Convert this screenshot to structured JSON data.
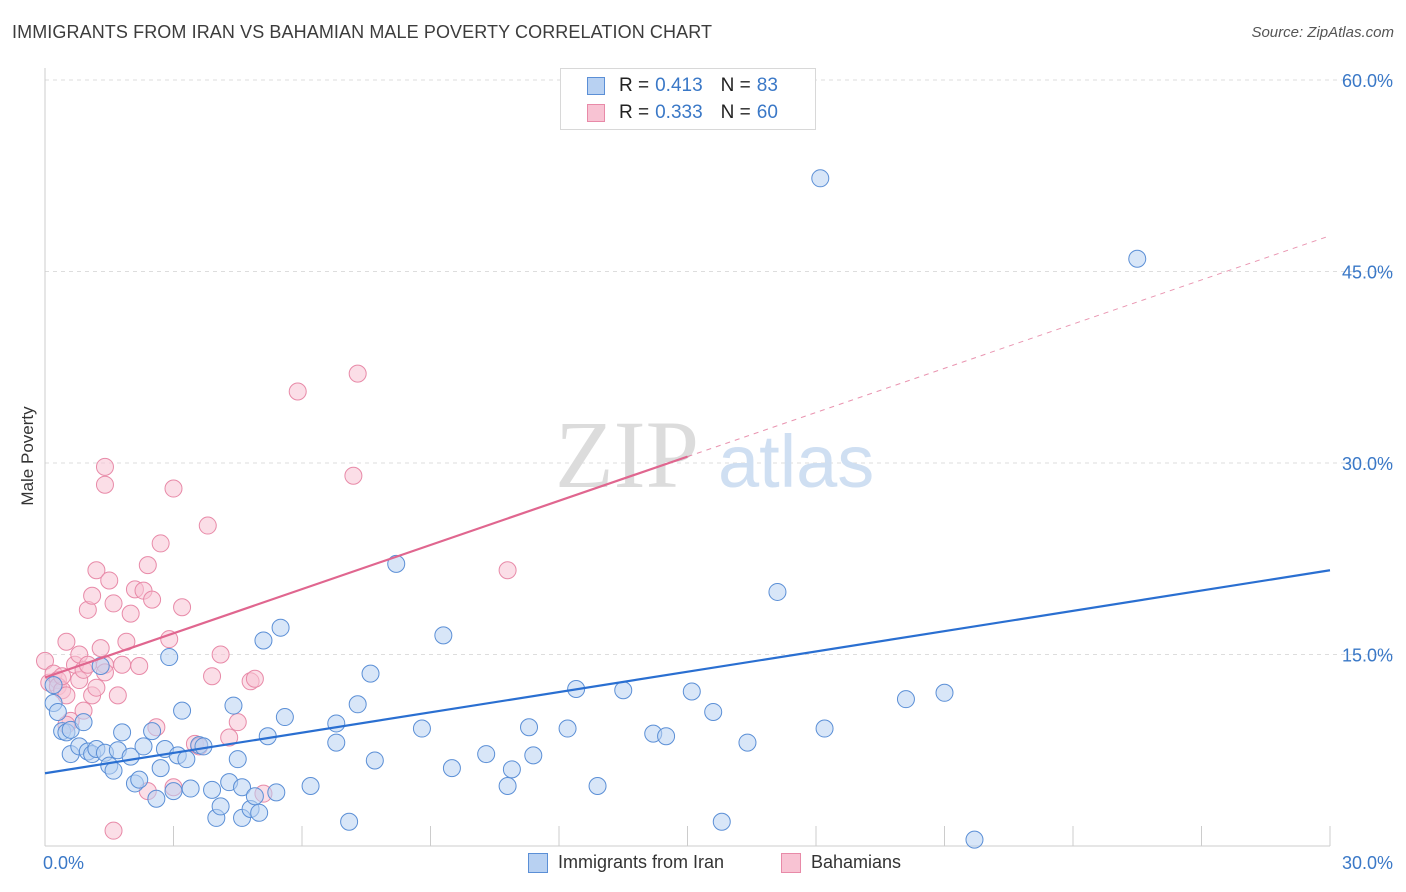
{
  "header": {
    "title": "IMMIGRANTS FROM IRAN VS BAHAMIAN MALE POVERTY CORRELATION CHART",
    "source": "Source: ZipAtlas.com"
  },
  "watermark": {
    "zip": "ZIP",
    "atlas": "atlas"
  },
  "stats": {
    "blue": {
      "r_label": "R =",
      "r_value": "0.413",
      "n_label": "N =",
      "n_value": "83"
    },
    "pink": {
      "r_label": "R =",
      "r_value": "0.333",
      "n_label": "N =",
      "n_value": "60"
    }
  },
  "legend": {
    "blue": "Immigrants from Iran",
    "pink": "Bahamians"
  },
  "colors": {
    "blue_fill": "#b8d1f2",
    "blue_stroke": "#5b8fd6",
    "blue_line": "#2a6fd1",
    "pink_fill": "#f8c3d3",
    "pink_stroke": "#e88aa8",
    "pink_line": "#e0668f",
    "grid": "#dddddd",
    "tick_label": "#3a78c7"
  },
  "chart_data": {
    "type": "scatter",
    "title": "IMMIGRANTS FROM IRAN VS BAHAMIAN MALE POVERTY CORRELATION CHART",
    "xlabel": "",
    "ylabel": "Male Poverty",
    "xlim": [
      0,
      30
    ],
    "ylim": [
      0,
      60
    ],
    "x_tick_labels": [
      "0.0%",
      "30.0%"
    ],
    "y_ticks": [
      15,
      30,
      45,
      60
    ],
    "y_tick_labels": [
      "15.0%",
      "30.0%",
      "45.0%",
      "60.0%"
    ],
    "grid": true,
    "legend_position": "bottom",
    "series": [
      {
        "name": "Immigrants from Iran",
        "r": 0.413,
        "n": 83,
        "trend": {
          "x": [
            0,
            30
          ],
          "y": [
            5.7,
            21.6
          ],
          "dashed_extension": false
        },
        "points": [
          [
            0.2,
            11.2
          ],
          [
            0.2,
            12.6
          ],
          [
            0.3,
            10.5
          ],
          [
            0.4,
            9.0
          ],
          [
            0.5,
            8.9
          ],
          [
            0.6,
            7.2
          ],
          [
            0.6,
            9.1
          ],
          [
            0.8,
            7.8
          ],
          [
            0.9,
            9.7
          ],
          [
            1.0,
            7.4
          ],
          [
            1.1,
            7.2
          ],
          [
            1.2,
            7.6
          ],
          [
            1.3,
            14.1
          ],
          [
            1.4,
            7.3
          ],
          [
            1.5,
            6.3
          ],
          [
            1.6,
            5.9
          ],
          [
            1.7,
            7.5
          ],
          [
            1.8,
            8.9
          ],
          [
            2.0,
            7.0
          ],
          [
            2.1,
            4.9
          ],
          [
            2.2,
            5.2
          ],
          [
            2.3,
            7.8
          ],
          [
            2.5,
            9.0
          ],
          [
            2.6,
            3.7
          ],
          [
            2.7,
            6.1
          ],
          [
            2.8,
            7.6
          ],
          [
            2.9,
            14.8
          ],
          [
            3.0,
            4.3
          ],
          [
            3.1,
            7.1
          ],
          [
            3.2,
            10.6
          ],
          [
            3.3,
            6.8
          ],
          [
            3.4,
            4.5
          ],
          [
            3.6,
            7.9
          ],
          [
            3.7,
            7.8
          ],
          [
            3.9,
            4.4
          ],
          [
            4.0,
            2.2
          ],
          [
            4.1,
            3.1
          ],
          [
            4.3,
            5.0
          ],
          [
            4.4,
            11.0
          ],
          [
            4.5,
            6.8
          ],
          [
            4.6,
            4.6
          ],
          [
            4.6,
            2.2
          ],
          [
            4.8,
            2.9
          ],
          [
            4.9,
            3.9
          ],
          [
            5.0,
            2.6
          ],
          [
            5.1,
            16.1
          ],
          [
            5.2,
            8.6
          ],
          [
            5.4,
            4.2
          ],
          [
            5.5,
            17.1
          ],
          [
            5.6,
            10.1
          ],
          [
            6.2,
            4.7
          ],
          [
            6.8,
            8.1
          ],
          [
            6.8,
            9.6
          ],
          [
            7.1,
            1.9
          ],
          [
            7.3,
            11.1
          ],
          [
            7.6,
            13.5
          ],
          [
            7.7,
            6.7
          ],
          [
            8.2,
            22.1
          ],
          [
            8.8,
            9.2
          ],
          [
            9.5,
            6.1
          ],
          [
            9.3,
            16.5
          ],
          [
            10.3,
            7.2
          ],
          [
            10.8,
            4.7
          ],
          [
            10.9,
            6.0
          ],
          [
            11.3,
            9.3
          ],
          [
            11.4,
            7.1
          ],
          [
            12.2,
            9.2
          ],
          [
            12.4,
            12.3
          ],
          [
            12.9,
            4.7
          ],
          [
            13.5,
            12.2
          ],
          [
            14.2,
            8.8
          ],
          [
            14.5,
            8.6
          ],
          [
            15.1,
            12.1
          ],
          [
            15.6,
            10.5
          ],
          [
            15.8,
            1.9
          ],
          [
            16.4,
            8.1
          ],
          [
            17.1,
            19.9
          ],
          [
            18.1,
            52.3
          ],
          [
            18.2,
            9.2
          ],
          [
            20.1,
            11.5
          ],
          [
            21.0,
            12.0
          ],
          [
            21.7,
            0.5
          ],
          [
            25.5,
            46.0
          ]
        ]
      },
      {
        "name": "Bahamians",
        "r": 0.333,
        "n": 60,
        "trend": {
          "x": [
            0,
            15
          ],
          "y": [
            13.2,
            30.5
          ],
          "dashed_extension_to": [
            30,
            47.8
          ]
        },
        "points": [
          [
            0.0,
            14.5
          ],
          [
            0.1,
            12.8
          ],
          [
            0.2,
            13.5
          ],
          [
            0.3,
            13.0
          ],
          [
            0.3,
            12.5
          ],
          [
            0.4,
            12.2
          ],
          [
            0.4,
            13.3
          ],
          [
            0.5,
            16.0
          ],
          [
            0.5,
            11.8
          ],
          [
            0.6,
            9.8
          ],
          [
            0.7,
            14.2
          ],
          [
            0.8,
            15.0
          ],
          [
            0.8,
            13.0
          ],
          [
            0.9,
            13.8
          ],
          [
            0.9,
            10.6
          ],
          [
            1.0,
            14.2
          ],
          [
            1.0,
            18.5
          ],
          [
            1.1,
            11.8
          ],
          [
            1.1,
            19.6
          ],
          [
            1.2,
            21.6
          ],
          [
            1.2,
            12.4
          ],
          [
            1.3,
            15.5
          ],
          [
            1.4,
            14.2
          ],
          [
            1.4,
            13.6
          ],
          [
            1.4,
            28.3
          ],
          [
            1.4,
            29.7
          ],
          [
            1.5,
            20.8
          ],
          [
            1.6,
            19.0
          ],
          [
            1.6,
            1.2
          ],
          [
            1.7,
            11.8
          ],
          [
            1.8,
            14.2
          ],
          [
            1.9,
            16.0
          ],
          [
            2.0,
            18.2
          ],
          [
            2.1,
            20.1
          ],
          [
            2.2,
            14.1
          ],
          [
            2.3,
            20.0
          ],
          [
            2.4,
            22.0
          ],
          [
            2.5,
            19.3
          ],
          [
            2.6,
            9.3
          ],
          [
            2.7,
            23.7
          ],
          [
            2.9,
            16.2
          ],
          [
            3.0,
            28.0
          ],
          [
            3.2,
            18.7
          ],
          [
            3.5,
            8.0
          ],
          [
            3.8,
            25.1
          ],
          [
            3.9,
            13.3
          ],
          [
            4.1,
            15.0
          ],
          [
            4.3,
            8.5
          ],
          [
            4.5,
            9.7
          ],
          [
            4.8,
            12.9
          ],
          [
            4.9,
            13.1
          ],
          [
            5.1,
            4.1
          ],
          [
            2.4,
            4.3
          ],
          [
            3.0,
            4.6
          ],
          [
            3.6,
            7.8
          ],
          [
            5.9,
            35.6
          ],
          [
            7.2,
            29.0
          ],
          [
            7.3,
            37.0
          ],
          [
            10.8,
            21.6
          ],
          [
            0.5,
            9.5
          ]
        ]
      }
    ]
  }
}
